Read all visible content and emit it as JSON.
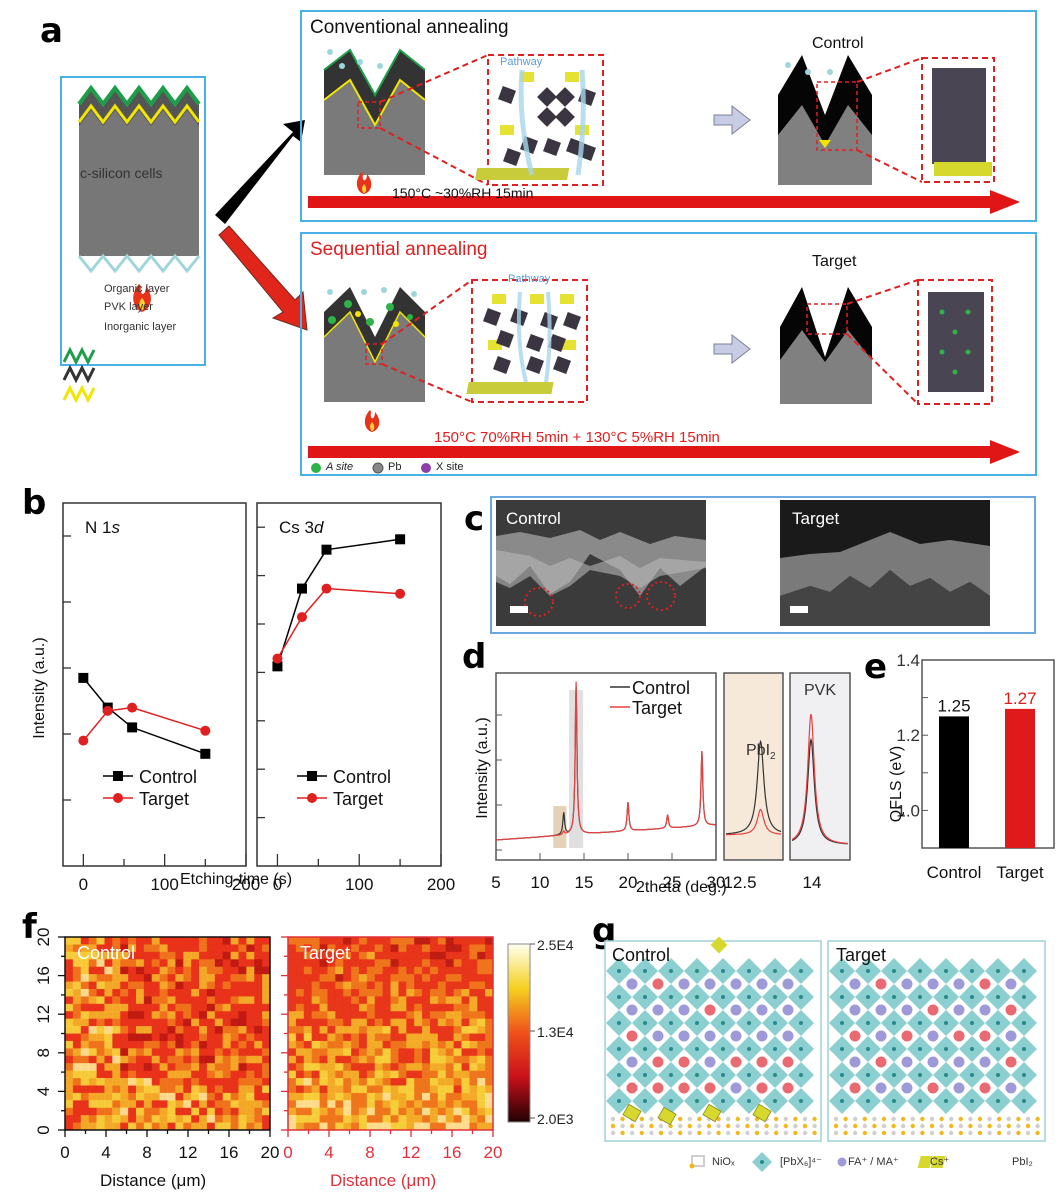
{
  "panel_labels": {
    "a": "a",
    "b": "b",
    "c": "c",
    "d": "d",
    "e": "e",
    "f": "f",
    "g": "g"
  },
  "panel_a": {
    "left_box": {
      "cell_label": "c-silicon cells",
      "legend": [
        {
          "label": "Organic layer",
          "color": "#1f9e4a"
        },
        {
          "label": "PVK layer",
          "color": "#333333"
        },
        {
          "label": "Inorganic layer",
          "color": "#f2e600"
        }
      ]
    },
    "top_row": {
      "title": "Conventional annealing",
      "pathway_label": "Pathway",
      "result_label": "Control",
      "condition": "150°C   ~30%RH 15min"
    },
    "bottom_row": {
      "title": "Sequential annealing",
      "pathway_label": "Pathway",
      "result_label": "Target",
      "condition": "150°C 70%RH 5min + 130°C 5%RH 15min",
      "site_legend": [
        {
          "label": "A site",
          "color": "#2db34a"
        },
        {
          "label": "Pb",
          "color": "#888888"
        },
        {
          "label": "X site",
          "color": "#8b3fa8"
        }
      ]
    },
    "colors": {
      "box_border": "#4ab0e8",
      "arrow_red": "#e0261b",
      "accent_red": "#e02020",
      "pathway_blue": "#5a9bd8"
    }
  },
  "panel_c": {
    "images": [
      {
        "label": "Control"
      },
      {
        "label": "Target"
      }
    ]
  },
  "chart_data": [
    {
      "id": "b-n1s",
      "type": "line",
      "title": "N 1s",
      "xlabel": "Etching-time (s)",
      "ylabel": "Intensity (a.u.)",
      "xlim": [
        -25,
        200
      ],
      "xticks": [
        0,
        100,
        200
      ],
      "ylim": [
        0,
        5.5
      ],
      "series": [
        {
          "name": "Control",
          "color": "#000000",
          "marker": "square",
          "x": [
            0,
            30,
            60,
            150
          ],
          "y": [
            2.85,
            2.4,
            2.1,
            1.7
          ]
        },
        {
          "name": "Target",
          "color": "#e02020",
          "marker": "circle",
          "x": [
            0,
            30,
            60,
            150
          ],
          "y": [
            1.9,
            2.35,
            2.4,
            2.05
          ]
        }
      ],
      "legend": "bottom-center"
    },
    {
      "id": "b-cs3d",
      "type": "line",
      "title": "Cs 3d",
      "xlabel": "Etching-time (s)",
      "ylabel": "",
      "xlim": [
        -25,
        200
      ],
      "xticks": [
        0,
        100,
        200
      ],
      "ylim": [
        0,
        7
      ],
      "series": [
        {
          "name": "Control",
          "color": "#000000",
          "marker": "square",
          "x": [
            0,
            30,
            60,
            150
          ],
          "y": [
            3.85,
            5.35,
            6.1,
            6.3
          ]
        },
        {
          "name": "Target",
          "color": "#e02020",
          "marker": "circle",
          "x": [
            0,
            30,
            60,
            150
          ],
          "y": [
            4.0,
            4.8,
            5.35,
            5.25
          ]
        }
      ],
      "legend": "bottom-center"
    },
    {
      "id": "d-xrd",
      "type": "line",
      "xlabel": "2theta (deg.)",
      "ylabel": "Intensity (a.u.)",
      "xlim": [
        5,
        30
      ],
      "xticks": [
        5,
        10,
        15,
        20,
        25,
        30
      ],
      "peaks_control": [
        {
          "x": 12.7,
          "h": 0.13
        },
        {
          "x": 14.1,
          "h": 0.87
        },
        {
          "x": 20.0,
          "h": 0.17
        },
        {
          "x": 24.5,
          "h": 0.08
        },
        {
          "x": 28.4,
          "h": 0.44
        }
      ],
      "peaks_target": [
        {
          "x": 12.7,
          "h": 0.02
        },
        {
          "x": 14.1,
          "h": 0.9
        },
        {
          "x": 20.0,
          "h": 0.17
        },
        {
          "x": 24.5,
          "h": 0.08
        },
        {
          "x": 28.4,
          "h": 0.44
        }
      ],
      "series": [
        {
          "name": "Control",
          "color": "#333333"
        },
        {
          "name": "Target",
          "color": "#e84040"
        }
      ],
      "highlights": [
        {
          "range": [
            11.5,
            13.0
          ],
          "color": "#ddc8a8"
        },
        {
          "range": [
            13.3,
            14.9
          ],
          "color": "#d8d8d8"
        }
      ],
      "legend": "top-right",
      "insets": [
        {
          "label": "PbI2",
          "xtick": "12.5",
          "bg": "#f6e9d9",
          "control_peak": 0.55,
          "target_peak": 0.15
        },
        {
          "label": "PVK",
          "xtick": "14",
          "bg": "#f0f0f2",
          "control_peak": 0.62,
          "target_peak": 0.77
        }
      ]
    },
    {
      "id": "e-qfls",
      "type": "bar",
      "categories": [
        "Control",
        "Target"
      ],
      "values": [
        1.25,
        1.27
      ],
      "value_labels": [
        "1.25",
        "1.27"
      ],
      "colors": [
        "#000000",
        "#e01a1a"
      ],
      "ylabel": "QFLS (eV)",
      "ylim": [
        0.9,
        1.4
      ],
      "yticks": [
        "1.0",
        "1.2",
        "1.4"
      ]
    },
    {
      "id": "f-pl-maps",
      "type": "heatmap",
      "maps": [
        {
          "label": "Control",
          "axis_color": "#111111"
        },
        {
          "label": "Target",
          "axis_color": "#e0303a"
        }
      ],
      "xlabel": "Distance (μm)",
      "xticks": [
        "0",
        "4",
        "8",
        "12",
        "16",
        "20"
      ],
      "yticks": [
        "0",
        "4",
        "8",
        "12",
        "16",
        "20"
      ],
      "colorbar": {
        "max": "2.5E4",
        "mid": "1.3E4",
        "min": "2.0E3"
      }
    }
  ],
  "panel_g": {
    "panels": [
      {
        "label": "Control"
      },
      {
        "label": "Target"
      }
    ],
    "legend": [
      {
        "label": "NiOₓ"
      },
      {
        "label": "[PbX₆]⁴⁻"
      },
      {
        "label": "FA⁺ / MA⁺",
        "color": "#9e9ad8"
      },
      {
        "label": "Cs⁺",
        "color": "#ea6a72"
      },
      {
        "label": "PbI₂"
      }
    ],
    "control_grid": [
      [
        "p",
        "r",
        "p",
        "p",
        "p",
        "p",
        "p"
      ],
      [
        "p",
        "p",
        "p",
        "r",
        "p",
        "p",
        "p"
      ],
      [
        "r",
        "p",
        "p",
        "p",
        "p",
        "p",
        "p"
      ],
      [
        "p",
        "r",
        "r",
        "p",
        "r",
        "r",
        "r"
      ],
      [
        "r",
        "r",
        "r",
        "r",
        "p",
        "r",
        "r"
      ]
    ],
    "target_grid": [
      [
        "p",
        "r",
        "p",
        "p",
        "p",
        "r",
        "p"
      ],
      [
        "p",
        "p",
        "p",
        "r",
        "p",
        "p",
        "r"
      ],
      [
        "r",
        "p",
        "r",
        "p",
        "r",
        "r",
        "p"
      ],
      [
        "p",
        "r",
        "p",
        "p",
        "p",
        "p",
        "r"
      ],
      [
        "r",
        "p",
        "p",
        "r",
        "p",
        "r",
        "p"
      ]
    ]
  }
}
